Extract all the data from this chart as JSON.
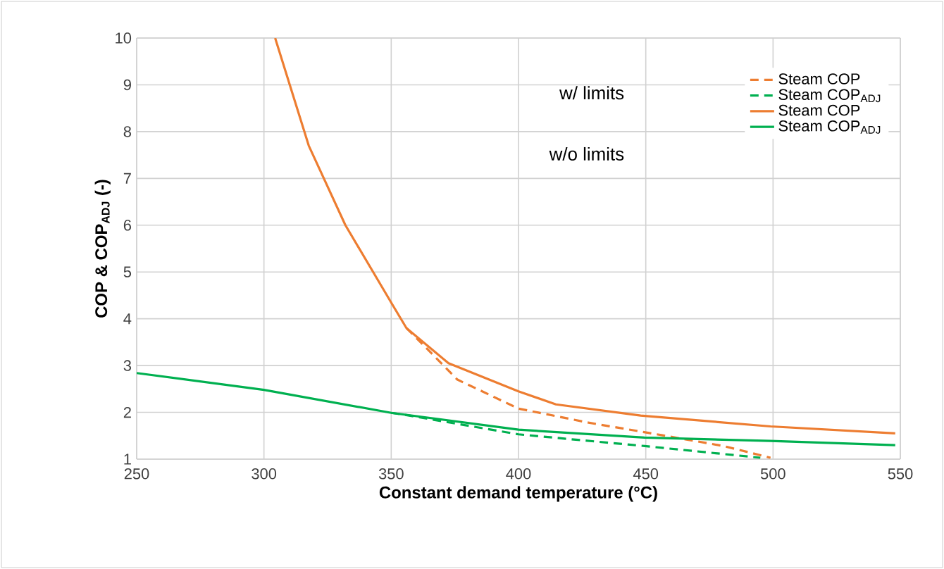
{
  "chart_data": {
    "type": "line",
    "xlabel": "Constant demand temperature (°C)",
    "ylabel": "COP & COP$_{ADJ}$ (-)",
    "xlim": [
      250,
      550
    ],
    "ylim": [
      1,
      10
    ],
    "xticks": [
      250,
      300,
      350,
      400,
      450,
      500,
      550
    ],
    "yticks": [
      1,
      2,
      3,
      4,
      5,
      6,
      7,
      8,
      9,
      10
    ],
    "grid": true,
    "legend": "top right",
    "annotations": [
      "w/ limits",
      "w/o limits"
    ],
    "series": [
      {
        "name": "Steam COP",
        "color": "#ed7d31",
        "line_style": "dashed",
        "x": [
          356,
          361.5,
          376,
          400,
          427.5,
          456.6,
          480.6,
          499
        ],
        "values": [
          3.8,
          3.5,
          2.7,
          2.08,
          1.78,
          1.51,
          1.28,
          1.03
        ]
      },
      {
        "name": "Steam COP$_{ADJ}$",
        "color": "#00b050",
        "line_style": "dashed",
        "x": [
          350,
          355,
          400,
          449.5,
          495
        ],
        "values": [
          1.99,
          1.95,
          1.53,
          1.28,
          1.03
        ]
      },
      {
        "name": "Steam COP",
        "color": "#ed7d31",
        "line_style": "solid",
        "x": [
          304.4,
          317.6,
          332,
          350.5,
          356,
          372.5,
          400,
          414.7,
          448,
          499,
          548
        ],
        "values": [
          10,
          7.7,
          6.0,
          4.3,
          3.8,
          3.05,
          2.45,
          2.17,
          1.93,
          1.7,
          1.55
        ]
      },
      {
        "name": "Steam COP$_{ADJ}$",
        "color": "#00b050",
        "line_style": "solid",
        "x": [
          250,
          300,
          350,
          400,
          449.5,
          499,
          548
        ],
        "values": [
          2.84,
          2.48,
          1.99,
          1.63,
          1.46,
          1.39,
          1.3
        ]
      }
    ]
  }
}
